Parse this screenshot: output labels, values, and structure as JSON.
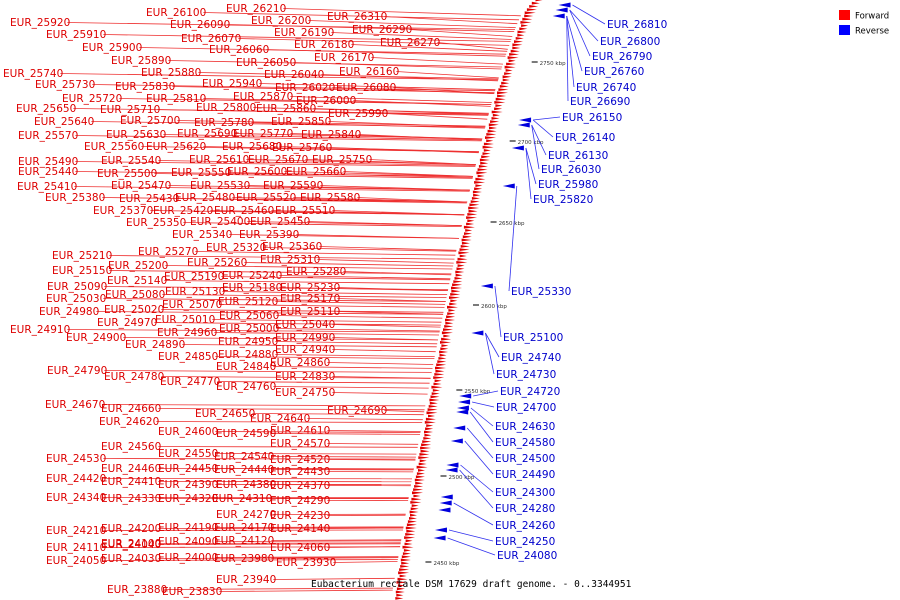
{
  "caption": "Eubacterium rectale DSM 17629 draft genome. - 0..3344951",
  "legend": [
    {
      "label": "Forward",
      "color": "#ff0000"
    },
    {
      "label": "Reverse",
      "color": "#0000ff"
    }
  ],
  "colors": {
    "forward": "#e00000",
    "reverse": "#0000dd",
    "backbone": "#888888"
  },
  "ticks": [
    "2750 kbp",
    "2700 kbp",
    "2650 kbp",
    "2600 kbp",
    "2550 kbp",
    "2500 kbp",
    "2450 kbp"
  ],
  "forward_labels": [
    "EUR_26210",
    "EUR_26100",
    "EUR_26200",
    "EUR_26310",
    "EUR_25920",
    "EUR_26090",
    "EUR_26290",
    "EUR_25910",
    "EUR_26070",
    "EUR_26190",
    "EUR_26270",
    "EUR_25900",
    "EUR_26060",
    "EUR_26180",
    "EUR_26170",
    "EUR_25890",
    "EUR_26050",
    "EUR_26160",
    "EUR_25740",
    "EUR_25880",
    "EUR_26040",
    "EUR_25730",
    "EUR_25830",
    "EUR_25940",
    "EUR_26020",
    "EUR_26080",
    "EUR_25720",
    "EUR_25810",
    "EUR_25870",
    "EUR_26000",
    "EUR_25650",
    "EUR_25710",
    "EUR_25800",
    "EUR_25860",
    "EUR_25990",
    "EUR_25640",
    "EUR_25700",
    "EUR_25780",
    "EUR_25850",
    "EUR_25570",
    "EUR_25630",
    "EUR_25690",
    "EUR_25770",
    "EUR_25840",
    "EUR_25560",
    "EUR_25620",
    "EUR_25680",
    "EUR_25760",
    "EUR_25490",
    "EUR_25540",
    "EUR_25610",
    "EUR_25670",
    "EUR_25750",
    "EUR_25440",
    "EUR_25500",
    "EUR_25550",
    "EUR_25600",
    "EUR_25660",
    "EUR_25410",
    "EUR_25470",
    "EUR_25530",
    "EUR_25590",
    "EUR_25380",
    "EUR_25430",
    "EUR_25480",
    "EUR_25520",
    "EUR_25580",
    "EUR_25370",
    "EUR_25420",
    "EUR_25460",
    "EUR_25510",
    "EUR_25350",
    "EUR_25400",
    "EUR_25450",
    "EUR_25340",
    "EUR_25390",
    "EUR_25320",
    "EUR_25360",
    "EUR_25270",
    "EUR_25210",
    "EUR_25310",
    "EUR_25260",
    "EUR_25150",
    "EUR_25200",
    "EUR_25240",
    "EUR_25280",
    "EUR_25190",
    "EUR_25140",
    "EUR_25090",
    "EUR_25130",
    "EUR_25180",
    "EUR_25230",
    "EUR_25080",
    "EUR_25030",
    "EUR_25120",
    "EUR_25170",
    "EUR_25070",
    "EUR_24980",
    "EUR_25020",
    "EUR_25060",
    "EUR_25110",
    "EUR_25010",
    "EUR_24970",
    "EUR_25040",
    "EUR_24910",
    "EUR_25000",
    "EUR_24960",
    "EUR_24900",
    "EUR_24990",
    "EUR_24950",
    "EUR_24890",
    "EUR_24940",
    "EUR_24880",
    "EUR_24850",
    "EUR_24860",
    "EUR_24840",
    "EUR_24790",
    "EUR_24830",
    "EUR_24780",
    "EUR_24770",
    "EUR_24760",
    "EUR_24750",
    "EUR_24670",
    "EUR_24690",
    "EUR_24660",
    "EUR_24650",
    "EUR_24640",
    "EUR_24620",
    "EUR_24610",
    "EUR_24600",
    "EUR_24590",
    "EUR_24570",
    "EUR_24560",
    "EUR_24550",
    "EUR_24540",
    "EUR_24520",
    "EUR_24530",
    "EUR_24460",
    "EUR_24450",
    "EUR_24440",
    "EUR_24430",
    "EUR_24420",
    "EUR_24410",
    "EUR_24390",
    "EUR_24380",
    "EUR_24370",
    "EUR_24340",
    "EUR_24330",
    "EUR_24320",
    "EUR_24310",
    "EUR_24290",
    "EUR_24270",
    "EUR_24230",
    "EUR_24210",
    "EUR_24200",
    "EUR_24190",
    "EUR_24170",
    "EUR_24140",
    "EUR_24100",
    "EUR_24090",
    "EUR_24120",
    "EUR_24110",
    "EUR_24040",
    "EUR_24060",
    "EUR_24050",
    "EUR_24030",
    "EUR_24000",
    "EUR_23980",
    "EUR_23930",
    "EUR_23940",
    "EUR_23880",
    "EUR_23830"
  ],
  "reverse_labels": [
    "EUR_26810",
    "EUR_26800",
    "EUR_26790",
    "EUR_26760",
    "EUR_26740",
    "EUR_26690",
    "EUR_26150",
    "EUR_26140",
    "EUR_26130",
    "EUR_26030",
    "EUR_25980",
    "EUR_25820",
    "EUR_25330",
    "EUR_25100",
    "EUR_24740",
    "EUR_24730",
    "EUR_24720",
    "EUR_24700",
    "EUR_24630",
    "EUR_24580",
    "EUR_24500",
    "EUR_24490",
    "EUR_24300",
    "EUR_24280",
    "EUR_24260",
    "EUR_24250",
    "EUR_24080"
  ]
}
